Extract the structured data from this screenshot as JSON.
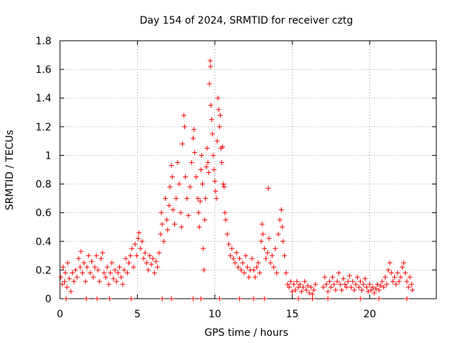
{
  "chart_data": {
    "type": "scatter",
    "title": "Day 154 of 2024, SRMTID for receiver cztg",
    "xlabel": "GPS time / hours",
    "ylabel": "SRMTID / TECUs",
    "xlim": [
      0,
      24.3
    ],
    "ylim": [
      0,
      1.8
    ],
    "xticks": [
      0,
      5,
      10,
      15,
      20
    ],
    "xtick_labels": [
      "0",
      "5",
      "10",
      "15",
      "20"
    ],
    "yticks": [
      0,
      0.2,
      0.4,
      0.6,
      0.8,
      1.0,
      1.2,
      1.4,
      1.6,
      1.8
    ],
    "ytick_labels": [
      "0",
      "0.2",
      "0.4",
      "0.6",
      "0.8",
      "1",
      "1.2",
      "1.4",
      "1.6",
      "1.8"
    ],
    "grid": true,
    "marker": "+",
    "color": "#ff0000",
    "series": [
      {
        "name": "SRMTID",
        "points": [
          [
            0.05,
            0.15
          ],
          [
            0.15,
            0.1
          ],
          [
            0.2,
            0.22
          ],
          [
            0.3,
            0.12
          ],
          [
            0.35,
            0.18
          ],
          [
            0.45,
            0.08
          ],
          [
            0.5,
            0.25
          ],
          [
            0.6,
            0.14
          ],
          [
            0.7,
            0.05
          ],
          [
            0.8,
            0.18
          ],
          [
            0.9,
            0.12
          ],
          [
            1.0,
            0.2
          ],
          [
            1.1,
            0.15
          ],
          [
            1.2,
            0.28
          ],
          [
            1.3,
            0.22
          ],
          [
            1.35,
            0.33
          ],
          [
            1.45,
            0.18
          ],
          [
            1.55,
            0.25
          ],
          [
            1.65,
            0.12
          ],
          [
            1.75,
            0.22
          ],
          [
            1.85,
            0.3
          ],
          [
            1.95,
            0.18
          ],
          [
            2.05,
            0.26
          ],
          [
            2.15,
            0.15
          ],
          [
            2.25,
            0.22
          ],
          [
            2.35,
            0.3
          ],
          [
            2.45,
            0.2
          ],
          [
            2.55,
            0.12
          ],
          [
            2.65,
            0.28
          ],
          [
            2.75,
            0.32
          ],
          [
            2.85,
            0.18
          ],
          [
            2.95,
            0.15
          ],
          [
            3.05,
            0.22
          ],
          [
            3.15,
            0.1
          ],
          [
            3.25,
            0.18
          ],
          [
            3.35,
            0.25
          ],
          [
            3.45,
            0.14
          ],
          [
            3.55,
            0.2
          ],
          [
            3.65,
            0.12
          ],
          [
            3.75,
            0.18
          ],
          [
            3.85,
            0.22
          ],
          [
            3.95,
            0.15
          ],
          [
            4.05,
            0.1
          ],
          [
            4.15,
            0.2
          ],
          [
            4.25,
            0.28
          ],
          [
            4.35,
            0.18
          ],
          [
            4.45,
            0.25
          ],
          [
            4.55,
            0.3
          ],
          [
            4.65,
            0.35
          ],
          [
            4.75,
            0.22
          ],
          [
            4.85,
            0.38
          ],
          [
            4.95,
            0.3
          ],
          [
            5.05,
            0.42
          ],
          [
            5.1,
            0.46
          ],
          [
            5.2,
            0.35
          ],
          [
            5.3,
            0.4
          ],
          [
            5.4,
            0.28
          ],
          [
            5.5,
            0.32
          ],
          [
            5.6,
            0.25
          ],
          [
            5.7,
            0.2
          ],
          [
            5.8,
            0.3
          ],
          [
            5.9,
            0.24
          ],
          [
            6.0,
            0.28
          ],
          [
            6.1,
            0.18
          ],
          [
            6.2,
            0.26
          ],
          [
            6.3,
            0.22
          ],
          [
            6.4,
            0.32
          ],
          [
            6.5,
            0.45
          ],
          [
            6.55,
            0.6
          ],
          [
            6.6,
            0.52
          ],
          [
            6.7,
            0.4
          ],
          [
            6.8,
            0.7
          ],
          [
            6.9,
            0.55
          ],
          [
            6.95,
            0.48
          ],
          [
            7.05,
            0.65
          ],
          [
            7.1,
            0.78
          ],
          [
            7.2,
            0.93
          ],
          [
            7.25,
            0.85
          ],
          [
            7.3,
            0.62
          ],
          [
            7.4,
            0.52
          ],
          [
            7.5,
            0.7
          ],
          [
            7.6,
            0.95
          ],
          [
            7.7,
            0.8
          ],
          [
            7.8,
            0.6
          ],
          [
            7.85,
            0.5
          ],
          [
            7.9,
            1.08
          ],
          [
            8.0,
            1.28
          ],
          [
            8.05,
            1.2
          ],
          [
            8.1,
            0.85
          ],
          [
            8.2,
            0.7
          ],
          [
            8.3,
            0.58
          ],
          [
            8.4,
            0.78
          ],
          [
            8.5,
            0.95
          ],
          [
            8.6,
            1.12
          ],
          [
            8.65,
            1.18
          ],
          [
            8.7,
            1.02
          ],
          [
            8.8,
            0.85
          ],
          [
            8.9,
            0.7
          ],
          [
            8.95,
            0.6
          ],
          [
            9.0,
            0.5
          ],
          [
            9.05,
            0.68
          ],
          [
            9.1,
            0.9
          ],
          [
            9.15,
            1.0
          ],
          [
            9.2,
            0.8
          ],
          [
            9.25,
            0.35
          ],
          [
            9.3,
            0.2
          ],
          [
            9.35,
            0.55
          ],
          [
            9.4,
            0.7
          ],
          [
            9.45,
            0.92
          ],
          [
            9.5,
            1.05
          ],
          [
            9.55,
            0.95
          ],
          [
            9.6,
            0.88
          ],
          [
            9.65,
            1.5
          ],
          [
            9.7,
            1.66
          ],
          [
            9.72,
            1.62
          ],
          [
            9.75,
            1.35
          ],
          [
            9.8,
            1.25
          ],
          [
            9.85,
            1.15
          ],
          [
            9.9,
            1.0
          ],
          [
            9.95,
            0.9
          ],
          [
            10.0,
            0.82
          ],
          [
            10.05,
            0.75
          ],
          [
            10.1,
            0.7
          ],
          [
            10.15,
            1.1
          ],
          [
            10.2,
            1.4
          ],
          [
            10.25,
            1.32
          ],
          [
            10.3,
            1.2
          ],
          [
            10.35,
            1.28
          ],
          [
            10.4,
            1.05
          ],
          [
            10.45,
            0.95
          ],
          [
            10.5,
            1.06
          ],
          [
            10.55,
            0.8
          ],
          [
            10.6,
            0.78
          ],
          [
            10.65,
            0.6
          ],
          [
            10.7,
            0.55
          ],
          [
            10.8,
            0.45
          ],
          [
            10.9,
            0.38
          ],
          [
            11.0,
            0.3
          ],
          [
            11.1,
            0.35
          ],
          [
            11.2,
            0.28
          ],
          [
            11.3,
            0.25
          ],
          [
            11.4,
            0.32
          ],
          [
            11.5,
            0.22
          ],
          [
            11.6,
            0.28
          ],
          [
            11.7,
            0.2
          ],
          [
            11.8,
            0.25
          ],
          [
            11.9,
            0.18
          ],
          [
            12.0,
            0.3
          ],
          [
            12.1,
            0.22
          ],
          [
            12.2,
            0.15
          ],
          [
            12.3,
            0.2
          ],
          [
            12.4,
            0.28
          ],
          [
            12.5,
            0.2
          ],
          [
            12.6,
            0.15
          ],
          [
            12.7,
            0.22
          ],
          [
            12.8,
            0.25
          ],
          [
            12.9,
            0.18
          ],
          [
            13.0,
            0.4
          ],
          [
            13.05,
            0.52
          ],
          [
            13.1,
            0.45
          ],
          [
            13.2,
            0.35
          ],
          [
            13.3,
            0.28
          ],
          [
            13.4,
            0.32
          ],
          [
            13.45,
            0.77
          ],
          [
            13.5,
            0.42
          ],
          [
            13.6,
            0.25
          ],
          [
            13.7,
            0.3
          ],
          [
            13.8,
            0.22
          ],
          [
            13.9,
            0.35
          ],
          [
            14.0,
            0.18
          ],
          [
            14.1,
            0.45
          ],
          [
            14.2,
            0.55
          ],
          [
            14.3,
            0.62
          ],
          [
            14.35,
            0.5
          ],
          [
            14.4,
            0.4
          ],
          [
            14.5,
            0.3
          ],
          [
            14.6,
            0.18
          ],
          [
            14.7,
            0.1
          ],
          [
            14.8,
            0.08
          ],
          [
            14.9,
            0.12
          ],
          [
            15.0,
            0.05
          ],
          [
            15.1,
            0.1
          ],
          [
            15.2,
            0.06
          ],
          [
            15.3,
            0.12
          ],
          [
            15.4,
            0.08
          ],
          [
            15.5,
            0.1
          ],
          [
            15.6,
            0.05
          ],
          [
            15.7,
            0.08
          ],
          [
            15.8,
            0.12
          ],
          [
            15.9,
            0.06
          ],
          [
            16.0,
            0.09
          ],
          [
            16.1,
            0.04
          ],
          [
            16.2,
            0.08
          ],
          [
            16.3,
            0.03
          ],
          [
            16.4,
            0.06
          ],
          [
            16.5,
            0.1
          ],
          [
            17.0,
            0.08
          ],
          [
            17.1,
            0.15
          ],
          [
            17.2,
            0.1
          ],
          [
            17.3,
            0.05
          ],
          [
            17.4,
            0.12
          ],
          [
            17.5,
            0.08
          ],
          [
            17.6,
            0.15
          ],
          [
            17.7,
            0.1
          ],
          [
            17.8,
            0.06
          ],
          [
            17.9,
            0.12
          ],
          [
            18.0,
            0.18
          ],
          [
            18.1,
            0.1
          ],
          [
            18.2,
            0.06
          ],
          [
            18.3,
            0.14
          ],
          [
            18.4,
            0.1
          ],
          [
            18.5,
            0.08
          ],
          [
            18.6,
            0.12
          ],
          [
            18.7,
            0.16
          ],
          [
            18.8,
            0.08
          ],
          [
            18.9,
            0.12
          ],
          [
            19.0,
            0.06
          ],
          [
            19.1,
            0.1
          ],
          [
            19.2,
            0.15
          ],
          [
            19.3,
            0.08
          ],
          [
            19.4,
            0.12
          ],
          [
            19.5,
            0.06
          ],
          [
            19.6,
            0.1
          ],
          [
            19.7,
            0.14
          ],
          [
            19.8,
            0.08
          ],
          [
            19.9,
            0.05
          ],
          [
            20.0,
            0.1
          ],
          [
            20.1,
            0.06
          ],
          [
            20.2,
            0.08
          ],
          [
            20.3,
            0.04
          ],
          [
            20.4,
            0.07
          ],
          [
            20.5,
            0.1
          ],
          [
            20.6,
            0.06
          ],
          [
            20.7,
            0.09
          ],
          [
            20.8,
            0.12
          ],
          [
            20.9,
            0.08
          ],
          [
            21.0,
            0.15
          ],
          [
            21.1,
            0.1
          ],
          [
            21.2,
            0.2
          ],
          [
            21.3,
            0.25
          ],
          [
            21.4,
            0.18
          ],
          [
            21.5,
            0.12
          ],
          [
            21.6,
            0.15
          ],
          [
            21.7,
            0.1
          ],
          [
            21.8,
            0.18
          ],
          [
            21.9,
            0.12
          ],
          [
            22.0,
            0.15
          ],
          [
            22.1,
            0.22
          ],
          [
            22.2,
            0.25
          ],
          [
            22.3,
            0.18
          ],
          [
            22.4,
            0.12
          ],
          [
            22.5,
            0.08
          ],
          [
            22.6,
            0.15
          ],
          [
            22.7,
            0.1
          ],
          [
            22.75,
            0.06
          ],
          [
            0.4,
            0.0
          ],
          [
            1.7,
            0.0
          ],
          [
            2.4,
            0.0
          ],
          [
            3.2,
            0.0
          ],
          [
            4.6,
            0.0
          ],
          [
            6.6,
            0.0
          ],
          [
            7.2,
            0.0
          ],
          [
            8.6,
            0.0
          ],
          [
            9.1,
            0.0
          ],
          [
            10.3,
            0.0
          ],
          [
            11.6,
            0.0
          ],
          [
            12.5,
            0.0
          ],
          [
            13.2,
            0.0
          ],
          [
            15.4,
            0.0
          ],
          [
            16.3,
            0.0
          ],
          [
            17.3,
            0.0
          ],
          [
            19.4,
            0.0
          ],
          [
            20.6,
            0.0
          ],
          [
            22.4,
            0.0
          ]
        ]
      }
    ]
  }
}
